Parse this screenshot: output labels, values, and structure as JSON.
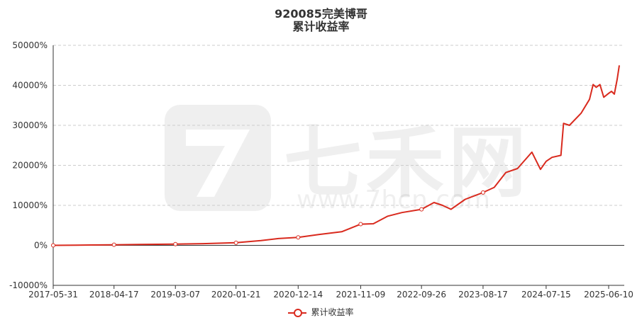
{
  "watermark": {
    "brand": "七禾网",
    "url": "www.7hcn.com"
  },
  "chart_data": {
    "type": "line",
    "title": "920085完美博哥",
    "subtitle": "累计收益率",
    "legend": "bottom",
    "grid": true,
    "y_tick_labels": [
      "50000%",
      "40000%",
      "30000%",
      "20000%",
      "10000%",
      "0%",
      "-10000%"
    ],
    "ylim": [
      -10000,
      50000
    ],
    "x_tick_labels": [
      "2017-05-31",
      "2018-04-17",
      "2019-03-07",
      "2020-01-21",
      "2020-12-14",
      "2021-11-09",
      "2022-09-26",
      "2023-08-17",
      "2024-07-15",
      "2025-06-10"
    ],
    "series": [
      {
        "name": "累计收益率",
        "color": "#d92a1e",
        "x": [
          "2017-05-31",
          "2017-10-01",
          "2018-04-17",
          "2018-09-01",
          "2019-03-07",
          "2019-08-01",
          "2020-01-21",
          "2020-06-01",
          "2020-09-01",
          "2020-12-14",
          "2021-04-01",
          "2021-08-01",
          "2021-11-09",
          "2022-01-15",
          "2022-04-01",
          "2022-06-15",
          "2022-09-26",
          "2022-12-01",
          "2023-01-15",
          "2023-03-01",
          "2023-05-15",
          "2023-08-17",
          "2023-10-15",
          "2023-12-15",
          "2024-02-15",
          "2024-05-01",
          "2024-06-15",
          "2024-07-15",
          "2024-08-15",
          "2024-10-01",
          "2024-10-15",
          "2024-11-15",
          "2025-01-15",
          "2025-03-01",
          "2025-03-20",
          "2025-04-05",
          "2025-04-25",
          "2025-05-15",
          "2025-06-10",
          "2025-06-25",
          "2025-07-10",
          "2025-07-25",
          "2025-08-05"
        ],
        "values": [
          0,
          50,
          150,
          220,
          300,
          420,
          650,
          1200,
          1700,
          2000,
          2700,
          3400,
          5300,
          5400,
          7300,
          8200,
          9000,
          10700,
          10000,
          9000,
          11500,
          13200,
          14500,
          18200,
          19200,
          23300,
          19000,
          21000,
          22000,
          22500,
          30500,
          30000,
          33000,
          36500,
          40200,
          39500,
          40200,
          37000,
          38000,
          38500,
          37800,
          41500,
          45000
        ]
      }
    ],
    "point_markers": [
      "2017-05-31",
      "2018-04-17",
      "2019-03-07",
      "2020-01-21",
      "2020-12-14",
      "2021-11-09",
      "2022-09-26",
      "2023-08-17"
    ]
  }
}
